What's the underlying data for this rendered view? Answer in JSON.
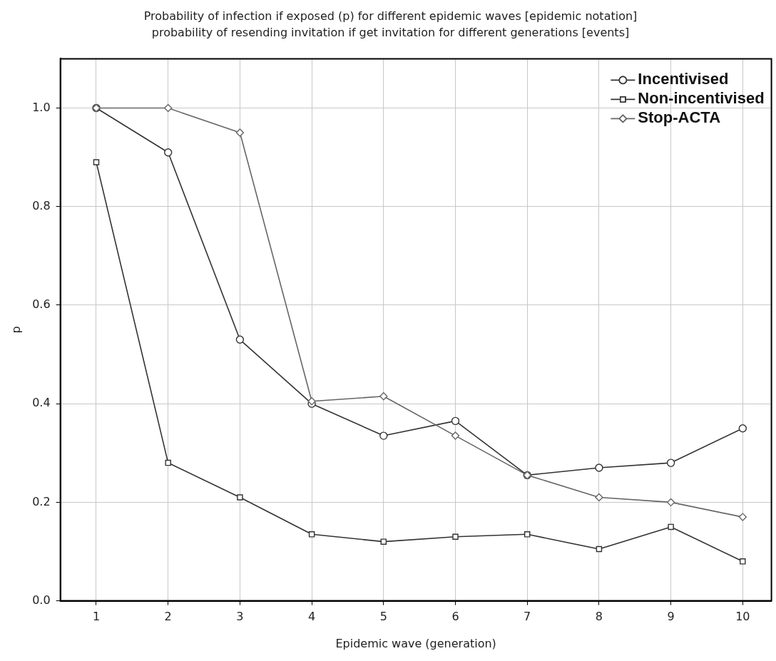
{
  "chart_data": {
    "type": "line",
    "title": "Probability of infection if exposed (p) for different epidemic waves [epidemic notation]",
    "subtitle": "probability of resending invitation if get invitation for different generations [events]",
    "xlabel": "Epidemic wave (generation)",
    "ylabel": "p",
    "x": [
      1,
      2,
      3,
      4,
      5,
      6,
      7,
      8,
      9,
      10
    ],
    "series": [
      {
        "name": "Incentivised",
        "color": "#333333",
        "marker": "circle",
        "values": [
          1.0,
          0.91,
          0.53,
          0.4,
          0.335,
          0.365,
          0.255,
          0.27,
          0.28,
          0.35
        ]
      },
      {
        "name": "Non-incentivised",
        "color": "#333333",
        "marker": "square",
        "values": [
          0.89,
          0.28,
          0.21,
          0.135,
          0.12,
          0.13,
          0.135,
          0.105,
          0.15,
          0.08
        ]
      },
      {
        "name": "Stop-ACTA",
        "color": "#666666",
        "marker": "diamond",
        "values": [
          1.0,
          1.0,
          0.95,
          0.405,
          0.415,
          0.335,
          0.255,
          0.21,
          0.2,
          0.17
        ]
      }
    ],
    "xlim": [
      0.5,
      10.4
    ],
    "xticks": [
      1,
      2,
      3,
      4,
      5,
      6,
      7,
      8,
      9,
      10
    ],
    "ylim": [
      0,
      1.1
    ],
    "yticks": [
      {
        "value": 0,
        "label": "0.0"
      },
      0.2,
      0.4,
      0.6,
      0.8,
      {
        "value": 1,
        "label": "1.0"
      }
    ],
    "grid": true,
    "legend": "top right",
    "line_style": "solid"
  }
}
